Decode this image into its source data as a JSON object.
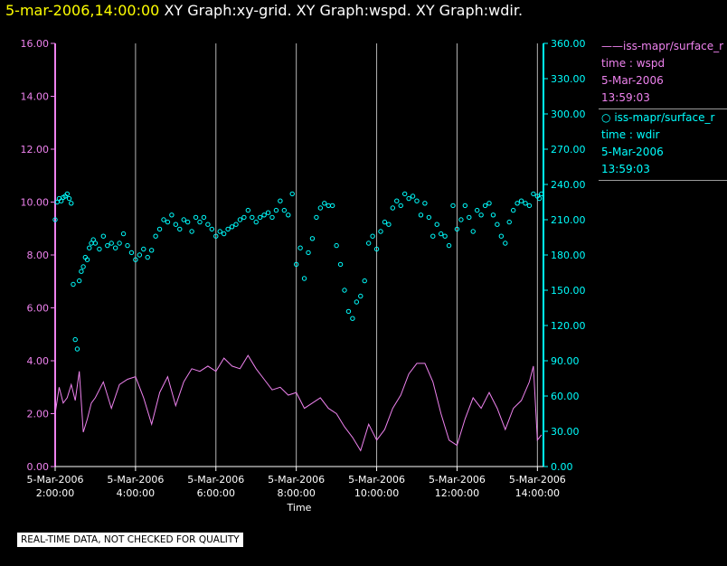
{
  "header": {
    "date_time": "5-mar-2006,14:00:00",
    "graphs": "XY Graph:xy-grid.  XY Graph:wspd.  XY Graph:wdir."
  },
  "legend": {
    "entries": [
      {
        "symbol": "——",
        "name": "iss-mapr/surface_r",
        "meta1": "time : wspd",
        "meta2": "5-Mar-2006",
        "meta3": "13:59:03"
      },
      {
        "symbol": "○",
        "name": "iss-mapr/surface_r",
        "meta1": "time : wdir",
        "meta2": "5-Mar-2006",
        "meta3": "13:59:03"
      }
    ]
  },
  "disclaimer": "REAL-TIME DATA, NOT CHECKED FOR QUALITY",
  "colors": {
    "wspd": "#ee82ee",
    "wdir": "#00ffff",
    "grid": "#b4b4b4",
    "title_date": "#ffff00",
    "text": "#ffffff",
    "background": "#000000"
  },
  "chart_data": {
    "type": "line",
    "xlabel": "Time",
    "x_range_hours": [
      2.0,
      14.15
    ],
    "x_ticks": [
      {
        "hour": 2,
        "date": "5-Mar-2006",
        "time": "2:00:00"
      },
      {
        "hour": 4,
        "date": "5-Mar-2006",
        "time": "4:00:00"
      },
      {
        "hour": 6,
        "date": "5-Mar-2006",
        "time": "6:00:00"
      },
      {
        "hour": 8,
        "date": "5-Mar-2006",
        "time": "8:00:00"
      },
      {
        "hour": 10,
        "date": "5-Mar-2006",
        "time": "10:00:00"
      },
      {
        "hour": 12,
        "date": "5-Mar-2006",
        "time": "12:00:00"
      },
      {
        "hour": 14,
        "date": "5-Mar-2006",
        "time": "14:00:00"
      }
    ],
    "left_axis": {
      "ylim": [
        0,
        16
      ],
      "ticks": [
        "0.00",
        "2.00",
        "4.00",
        "6.00",
        "8.00",
        "10.00",
        "12.00",
        "14.00",
        "16.00"
      ]
    },
    "right_axis": {
      "ylim": [
        0,
        360
      ],
      "ticks": [
        "0.00",
        "30.00",
        "60.00",
        "90.00",
        "120.00",
        "150.00",
        "180.00",
        "210.00",
        "240.00",
        "270.00",
        "300.00",
        "330.00",
        "360.00"
      ]
    },
    "grid": "vertical lines at x ticks",
    "series": [
      {
        "name": "time : wspd",
        "style": "line",
        "axis": "left",
        "x": [
          2.0,
          2.1,
          2.2,
          2.3,
          2.4,
          2.5,
          2.6,
          2.7,
          2.8,
          2.9,
          3.0,
          3.2,
          3.4,
          3.6,
          3.8,
          4.0,
          4.2,
          4.4,
          4.6,
          4.8,
          5.0,
          5.2,
          5.4,
          5.6,
          5.8,
          6.0,
          6.2,
          6.4,
          6.6,
          6.8,
          7.0,
          7.2,
          7.4,
          7.6,
          7.8,
          8.0,
          8.2,
          8.4,
          8.6,
          8.8,
          9.0,
          9.2,
          9.4,
          9.6,
          9.8,
          10.0,
          10.2,
          10.4,
          10.6,
          10.8,
          11.0,
          11.2,
          11.4,
          11.6,
          11.8,
          12.0,
          12.2,
          12.4,
          12.6,
          12.8,
          13.0,
          13.2,
          13.4,
          13.6,
          13.8,
          13.9,
          14.0,
          14.1
        ],
        "values": [
          2.0,
          3.0,
          2.4,
          2.6,
          3.1,
          2.5,
          3.6,
          1.3,
          1.8,
          2.4,
          2.6,
          3.2,
          2.2,
          3.1,
          3.3,
          3.4,
          2.6,
          1.6,
          2.8,
          3.4,
          2.3,
          3.2,
          3.7,
          3.6,
          3.8,
          3.6,
          4.1,
          3.8,
          3.7,
          4.2,
          3.7,
          3.3,
          2.9,
          3.0,
          2.7,
          2.8,
          2.2,
          2.4,
          2.6,
          2.2,
          2.0,
          1.5,
          1.1,
          0.6,
          1.6,
          1.0,
          1.4,
          2.2,
          2.7,
          3.5,
          3.9,
          3.9,
          3.2,
          2.0,
          1.0,
          0.8,
          1.8,
          2.6,
          2.2,
          2.8,
          2.2,
          1.4,
          2.2,
          2.5,
          3.2,
          3.8,
          1.0,
          1.2
        ]
      },
      {
        "name": "time : wdir",
        "style": "markers",
        "axis": "right",
        "x": [
          2.0,
          2.05,
          2.1,
          2.15,
          2.2,
          2.25,
          2.3,
          2.35,
          2.4,
          2.45,
          2.5,
          2.55,
          2.6,
          2.65,
          2.7,
          2.75,
          2.8,
          2.85,
          2.9,
          2.95,
          3.0,
          3.1,
          3.2,
          3.3,
          3.4,
          3.5,
          3.6,
          3.7,
          3.8,
          3.9,
          4.0,
          4.1,
          4.2,
          4.3,
          4.4,
          4.5,
          4.6,
          4.7,
          4.8,
          4.9,
          5.0,
          5.1,
          5.2,
          5.3,
          5.4,
          5.5,
          5.6,
          5.7,
          5.8,
          5.9,
          6.0,
          6.1,
          6.2,
          6.3,
          6.4,
          6.5,
          6.6,
          6.7,
          6.8,
          6.9,
          7.0,
          7.1,
          7.2,
          7.3,
          7.4,
          7.5,
          7.6,
          7.7,
          7.8,
          7.9,
          8.0,
          8.1,
          8.2,
          8.3,
          8.4,
          8.5,
          8.6,
          8.7,
          8.8,
          8.9,
          9.0,
          9.1,
          9.2,
          9.3,
          9.4,
          9.5,
          9.6,
          9.7,
          9.8,
          9.9,
          10.0,
          10.1,
          10.2,
          10.3,
          10.4,
          10.5,
          10.6,
          10.7,
          10.8,
          10.9,
          11.0,
          11.1,
          11.2,
          11.3,
          11.4,
          11.5,
          11.6,
          11.7,
          11.8,
          11.9,
          12.0,
          12.1,
          12.2,
          12.3,
          12.4,
          12.5,
          12.6,
          12.7,
          12.8,
          12.9,
          13.0,
          13.1,
          13.2,
          13.3,
          13.4,
          13.5,
          13.6,
          13.7,
          13.8,
          13.9,
          14.0,
          14.05,
          14.1
        ],
        "values": [
          210,
          225,
          228,
          226,
          229,
          230,
          232,
          228,
          224,
          155,
          108,
          100,
          158,
          166,
          170,
          178,
          176,
          186,
          190,
          193,
          190,
          185,
          196,
          188,
          190,
          186,
          190,
          198,
          188,
          182,
          176,
          180,
          185,
          178,
          184,
          196,
          202,
          210,
          208,
          214,
          206,
          202,
          210,
          208,
          200,
          212,
          208,
          212,
          206,
          202,
          196,
          200,
          198,
          202,
          204,
          206,
          210,
          212,
          218,
          212,
          208,
          212,
          214,
          216,
          212,
          218,
          226,
          218,
          214,
          232,
          172,
          186,
          160,
          182,
          194,
          212,
          220,
          224,
          222,
          222,
          188,
          172,
          150,
          132,
          126,
          140,
          145,
          158,
          190,
          196,
          185,
          200,
          208,
          206,
          220,
          226,
          222,
          232,
          228,
          230,
          226,
          214,
          224,
          212,
          196,
          206,
          198,
          196,
          188,
          222,
          202,
          210,
          222,
          212,
          200,
          218,
          214,
          222,
          224,
          214,
          206,
          196,
          190,
          208,
          218,
          224,
          226,
          224,
          222,
          232,
          230,
          228,
          232
        ]
      }
    ]
  }
}
